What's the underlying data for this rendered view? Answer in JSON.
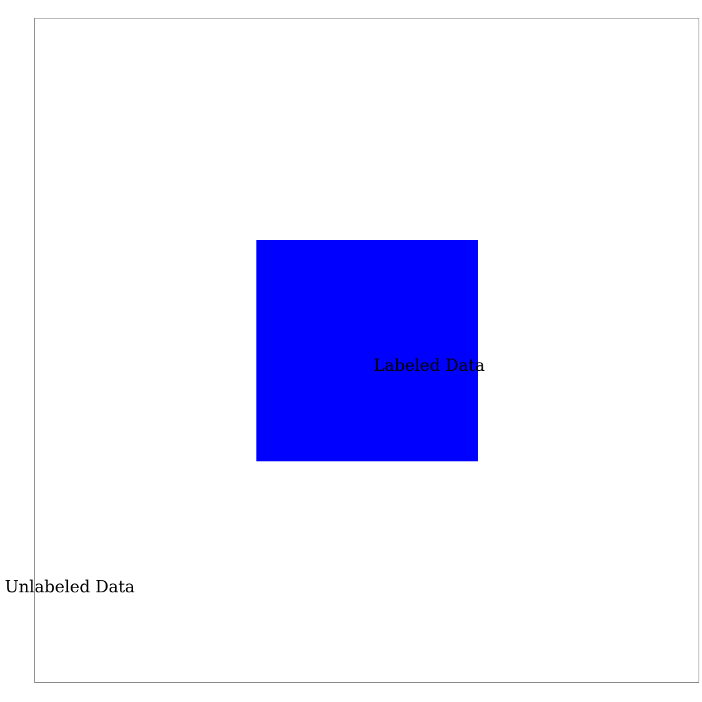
{
  "diagram": {
    "regions": [
      {
        "id": "unlabeled",
        "label": "Unlabeled Data",
        "color": "#ffffff",
        "border_color": "#888888"
      },
      {
        "id": "labeled",
        "label": "Labeled Data",
        "color": "#0000ff"
      }
    ]
  }
}
